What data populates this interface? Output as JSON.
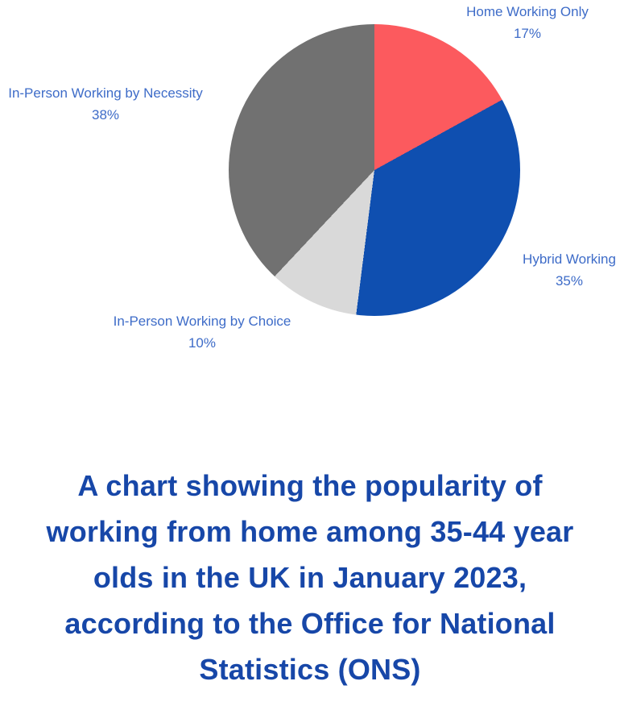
{
  "chart_data": {
    "type": "pie",
    "title": "Popularity of working from home among 35-44 year olds in the UK, January 2023 (ONS)",
    "start_angle_deg": 0,
    "direction": "clockwise",
    "legend": "none",
    "labels_outside": true,
    "slices": [
      {
        "label": "Home Working Only",
        "value": 17,
        "pct_label": "17%",
        "color": "#FC5A5E"
      },
      {
        "label": "Hybrid Working",
        "value": 35,
        "pct_label": "35%",
        "color": "#0F4FB0"
      },
      {
        "label": "In-Person Working by Choice",
        "value": 10,
        "pct_label": "10%",
        "color": "#D9D9D9"
      },
      {
        "label": "In-Person Working by Necessity",
        "value": 38,
        "pct_label": "38%",
        "color": "#717171"
      }
    ]
  },
  "caption": {
    "lines": [
      "A chart showing the popularity of",
      "working from home among 35-44 year",
      "olds in the UK in January 2023,",
      "according to the Office for National",
      "Statistics (ONS)"
    ]
  },
  "colors": {
    "background": "#FFFFFF",
    "label_text": "#3E6CC8",
    "caption_text": "#1747A8"
  }
}
